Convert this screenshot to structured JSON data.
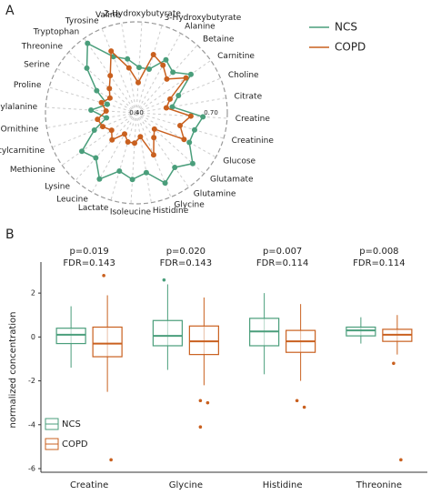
{
  "chart_data": [
    {
      "type": "radar",
      "panel": "A",
      "categories": [
        "2-Hydroxybutyrate",
        "3-Hydroxybutyrate",
        "Alanine",
        "Betaine",
        "Carnitine",
        "Choline",
        "Citrate",
        "Creatine",
        "Creatinine",
        "Glucose",
        "Glutamate",
        "Glutamine",
        "Glycine",
        "Histidine",
        "Isoleucine",
        "Lactate",
        "Leucine",
        "Lysine",
        "Methionine",
        "Acetylcarnitine",
        "Ornithine",
        "Phenylalanine",
        "Proline",
        "Serine",
        "Threonine",
        "Tryptophan",
        "Tyrosine",
        "Valine"
      ],
      "rlim": [
        0.4,
        0.7
      ],
      "rticks": [
        {
          "value": 0.4,
          "label": "0.40"
        },
        {
          "value": 0.7,
          "label": "0.70"
        }
      ],
      "series": [
        {
          "name": "NCS",
          "color": "#4a9e7b",
          "values": [
            0.55,
            0.55,
            0.6,
            0.58,
            0.62,
            0.55,
            0.52,
            0.62,
            0.6,
            0.6,
            0.65,
            0.62,
            0.65,
            0.6,
            0.62,
            0.6,
            0.65,
            0.6,
            0.62,
            0.55,
            0.5,
            0.55,
            0.5,
            0.55,
            0.62,
            0.68,
            0.6,
            0.58
          ]
        },
        {
          "name": "COPD",
          "color": "#c9601f",
          "values": [
            0.5,
            0.6,
            0.58,
            0.55,
            0.6,
            0.52,
            0.5,
            0.58,
            0.55,
            0.58,
            0.48,
            0.5,
            0.55,
            0.48,
            0.5,
            0.5,
            0.48,
            0.52,
            0.5,
            0.52,
            0.53,
            0.5,
            0.52,
            0.5,
            0.52,
            0.55,
            0.62,
            0.55
          ]
        }
      ]
    },
    {
      "type": "boxplot",
      "panel": "B",
      "y_label": "normalized concentration",
      "categories": [
        "Creatine",
        "Glycine",
        "Histidine",
        "Threonine"
      ],
      "annotations": [
        [
          "p=0.019",
          "FDR=0.143"
        ],
        [
          "p=0.020",
          "FDR=0.143"
        ],
        [
          "p=0.007",
          "FDR=0.114"
        ],
        [
          "p=0.008",
          "FDR=0.114"
        ]
      ],
      "ylim": [
        -6,
        3
      ],
      "yticks": [
        -6,
        -4,
        -2,
        0,
        2
      ],
      "series": [
        {
          "name": "NCS",
          "color": "#4a9e7b",
          "values": [
            {
              "low": -1.4,
              "q1": -0.3,
              "median": 0.1,
              "q3": 0.4,
              "high": 1.4
            },
            {
              "low": -1.5,
              "q1": -0.4,
              "median": 0.05,
              "q3": 0.75,
              "high": 2.4
            },
            {
              "low": -1.7,
              "q1": -0.4,
              "median": 0.25,
              "q3": 0.85,
              "high": 2.0
            },
            {
              "low": -0.3,
              "q1": 0.05,
              "median": 0.3,
              "q3": 0.45,
              "high": 0.9
            }
          ],
          "outliers": [
            [],
            [
              2.6
            ],
            [],
            []
          ]
        },
        {
          "name": "COPD",
          "color": "#c9601f",
          "values": [
            {
              "low": -2.5,
              "q1": -0.9,
              "median": -0.3,
              "q3": 0.45,
              "high": 1.9
            },
            {
              "low": -2.2,
              "q1": -0.8,
              "median": -0.2,
              "q3": 0.5,
              "high": 1.8
            },
            {
              "low": -2.0,
              "q1": -0.7,
              "median": -0.2,
              "q3": 0.3,
              "high": 1.5
            },
            {
              "low": -0.8,
              "q1": -0.2,
              "median": 0.1,
              "q3": 0.35,
              "high": 1.0
            }
          ],
          "outliers": [
            [
              2.8,
              -5.6
            ],
            [
              -2.9,
              -3.0,
              -4.1
            ],
            [
              -2.9,
              -3.2
            ],
            [
              -1.2,
              -5.6
            ]
          ]
        }
      ]
    }
  ]
}
